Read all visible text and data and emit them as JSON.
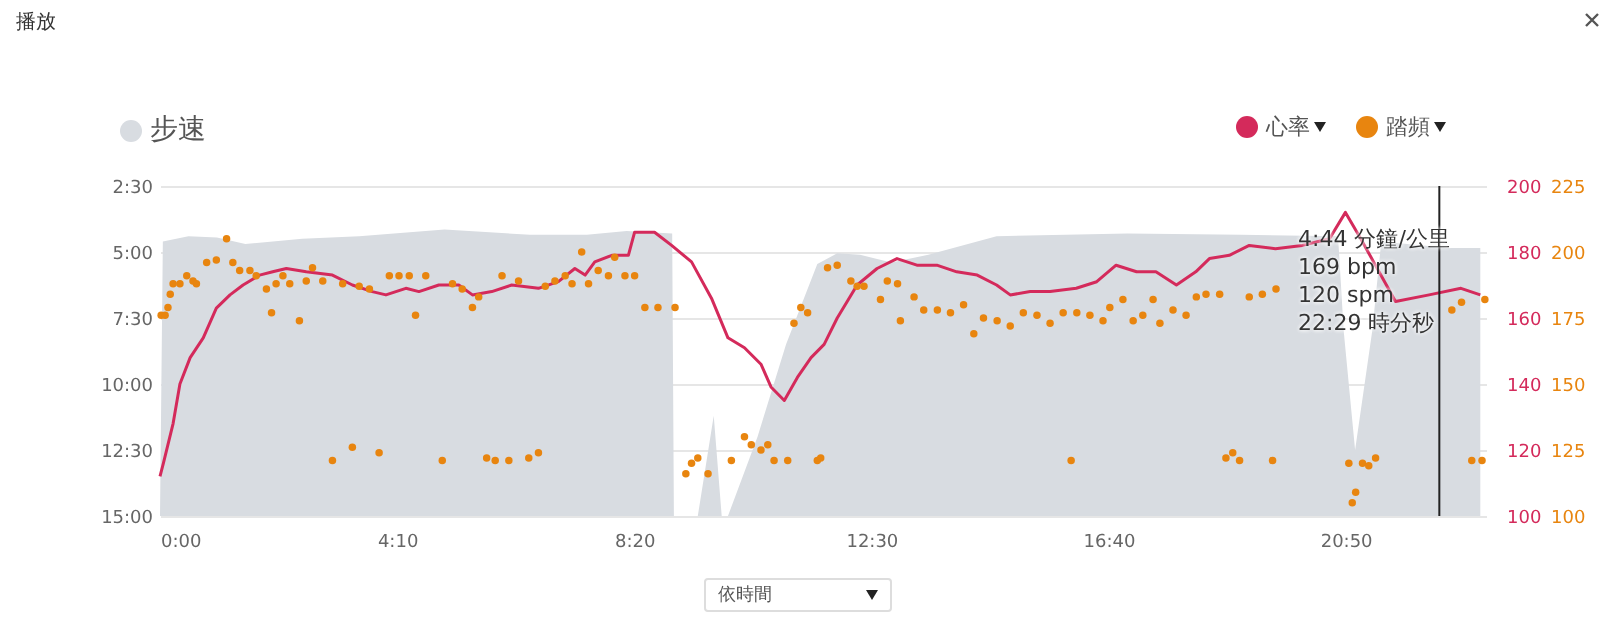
{
  "chart_data": {
    "type": "area",
    "title": "播放",
    "legend": "top",
    "grid": "y",
    "xlim": [
      0,
      23.3
    ],
    "xticks": [
      {
        "value": 0,
        "label": "0:00"
      },
      {
        "value": 4.1667,
        "label": "4:10"
      },
      {
        "value": 8.3333,
        "label": "8:20"
      },
      {
        "value": 12.5,
        "label": "12:30"
      },
      {
        "value": 16.6667,
        "label": "16:40"
      },
      {
        "value": 20.8333,
        "label": "20:50"
      }
    ],
    "ylim": [
      15,
      2.5
    ],
    "yticks": [
      {
        "value": 2.5,
        "label": "2:30"
      },
      {
        "value": 5,
        "label": "5:00"
      },
      {
        "value": 7.5,
        "label": "7:30"
      },
      {
        "value": 10,
        "label": "10:00"
      },
      {
        "value": 12.5,
        "label": "12:30"
      },
      {
        "value": 15,
        "label": "15:00"
      }
    ],
    "y2lim": [
      100,
      200
    ],
    "y2ticks": [
      100,
      120,
      140,
      160,
      180,
      200
    ],
    "y3lim": [
      100,
      225
    ],
    "y3ticks": [
      100,
      125,
      150,
      175,
      200,
      225
    ],
    "ref_lines": [
      {
        "axis": "x",
        "value": 22.48,
        "color": "#222222"
      }
    ],
    "annotations": [
      "4:44 分鐘/公里",
      "169 bpm",
      "120 spm",
      "22:29 時分秒",
      "依時間"
    ],
    "series": [
      {
        "name": "步速",
        "type": "area",
        "color": "#d8dce1",
        "x": [
          0,
          0.05,
          0.5,
          1.0,
          1.5,
          2.5,
          3.5,
          5,
          6.5,
          7.5,
          8.2,
          9.0,
          9.03,
          9.45,
          9.73,
          9.87,
          9.98,
          10.5,
          11,
          11.55,
          11.9,
          12.3,
          12.85,
          13.5,
          14.7,
          17,
          19,
          20.7,
          20.8,
          21.0,
          21.3,
          21.46,
          22.65,
          23.2,
          23.2
        ],
        "values": [
          15,
          4.6,
          4.4,
          4.45,
          4.7,
          4.5,
          4.4,
          4.15,
          4.35,
          4.35,
          4.2,
          4.3,
          15,
          15,
          11.2,
          15,
          15,
          12,
          8.5,
          5.45,
          5.05,
          5.1,
          5.4,
          5.1,
          4.4,
          4.3,
          4.35,
          4.4,
          8,
          12.5,
          8,
          4.6,
          4.85,
          4.85,
          15
        ]
      },
      {
        "name": "心率",
        "type": "line",
        "axis": "y2",
        "color": "#d42a5b",
        "x": [
          0,
          0.06,
          0.23,
          0.35,
          0.53,
          0.76,
          0.99,
          1.23,
          1.46,
          1.75,
          1.98,
          2.22,
          2.57,
          3.03,
          3.38,
          3.73,
          3.97,
          4.32,
          4.55,
          4.9,
          5.25,
          5.49,
          5.83,
          6.18,
          6.65,
          7.0,
          7.29,
          7.47,
          7.64,
          7.94,
          8.23,
          8.34,
          8.69,
          8.99,
          9.34,
          9.69,
          9.98,
          10.27,
          10.56,
          10.74,
          10.97,
          11.2,
          11.44,
          11.67,
          11.9,
          12.25,
          12.6,
          12.95,
          13.3,
          13.65,
          14.0,
          14.36,
          14.7,
          14.94,
          15.29,
          15.64,
          16.1,
          16.46,
          16.8,
          17.16,
          17.5,
          17.86,
          18.2,
          18.44,
          18.79,
          19.14,
          19.6,
          20.07,
          20.55,
          20.83,
          21.1,
          21.71,
          22.3,
          22.86,
          23.2
        ],
        "values": [
          112,
          116,
          128,
          140,
          148,
          154,
          163,
          167,
          170,
          173,
          174,
          175,
          174,
          173,
          170,
          168,
          167,
          169,
          168,
          170,
          170,
          167,
          168,
          170,
          169,
          171,
          175,
          173,
          177,
          179,
          179,
          186,
          186,
          182,
          177,
          166,
          154,
          151,
          146,
          139,
          135,
          142,
          148,
          152,
          160,
          170,
          175,
          178,
          176,
          176,
          174,
          173,
          170,
          167,
          168,
          168,
          169,
          171,
          176,
          174,
          174,
          170,
          174,
          178,
          179,
          182,
          181,
          182,
          184,
          192,
          184,
          165,
          167,
          169,
          167
        ]
      },
      {
        "name": "踏頻",
        "type": "scatter",
        "axis": "y3",
        "marker": "circle",
        "color": "#e8850f",
        "x": [
          0.02,
          0.09,
          0.14,
          0.18,
          0.23,
          0.35,
          0.47,
          0.58,
          0.64,
          0.82,
          0.99,
          1.17,
          1.28,
          1.4,
          1.58,
          1.69,
          1.87,
          1.96,
          2.04,
          2.16,
          2.28,
          2.45,
          2.57,
          2.68,
          2.86,
          3.03,
          3.21,
          3.38,
          3.5,
          3.68,
          3.85,
          4.03,
          4.2,
          4.38,
          4.49,
          4.67,
          4.96,
          5.14,
          5.31,
          5.49,
          5.6,
          5.74,
          5.89,
          6.01,
          6.13,
          6.3,
          6.48,
          6.65,
          6.77,
          6.94,
          7.12,
          7.24,
          7.41,
          7.53,
          7.7,
          7.88,
          7.99,
          8.17,
          8.34,
          8.52,
          8.75,
          9.05,
          9.24,
          9.34,
          9.45,
          9.63,
          10.04,
          10.27,
          10.39,
          10.56,
          10.68,
          10.79,
          11.03,
          11.14,
          11.26,
          11.38,
          11.55,
          11.61,
          11.73,
          11.9,
          12.14,
          12.25,
          12.37,
          12.66,
          12.78,
          12.96,
          13.01,
          13.25,
          13.42,
          13.66,
          13.89,
          14.12,
          14.3,
          14.47,
          14.71,
          14.94,
          15.17,
          15.41,
          15.64,
          15.87,
          16.01,
          16.11,
          16.34,
          16.57,
          16.69,
          16.92,
          17.1,
          17.27,
          17.45,
          17.57,
          17.8,
          18.03,
          18.21,
          18.38,
          18.62,
          18.73,
          18.85,
          18.97,
          19.14,
          19.37,
          19.55,
          19.61,
          20.89,
          20.95,
          21.01,
          21.13,
          21.24,
          21.36,
          22.7,
          22.87,
          23.05,
          23.23,
          23.28
        ],
        "values": [
          176,
          176,
          179,
          184,
          188,
          188,
          191,
          189,
          188,
          196,
          197,
          205,
          196,
          193,
          193,
          191,
          186,
          177,
          188,
          191,
          188,
          174,
          189,
          194,
          189,
          121,
          188,
          126,
          187,
          186,
          124,
          191,
          191,
          191,
          176,
          191,
          121,
          188,
          186,
          179,
          183,
          122,
          121,
          191,
          121,
          189,
          122,
          124,
          187,
          189,
          191,
          188,
          200,
          188,
          193,
          191,
          198,
          191,
          191,
          179,
          179,
          179,
          116,
          120,
          122,
          116,
          121,
          130,
          127,
          125,
          127,
          121,
          121,
          173,
          179,
          177,
          121,
          122,
          194,
          195,
          189,
          187,
          187,
          182,
          189,
          188,
          174,
          183,
          178,
          178,
          177,
          180,
          169,
          175,
          174,
          172,
          177,
          176,
          173,
          177,
          121,
          177,
          176,
          174,
          179,
          182,
          174,
          176,
          182,
          173,
          178,
          176,
          183,
          184,
          184,
          122,
          124,
          121,
          183,
          184,
          121,
          186,
          120,
          105,
          109,
          120,
          119,
          122,
          178,
          181,
          121,
          121,
          182
        ]
      }
    ]
  }
}
